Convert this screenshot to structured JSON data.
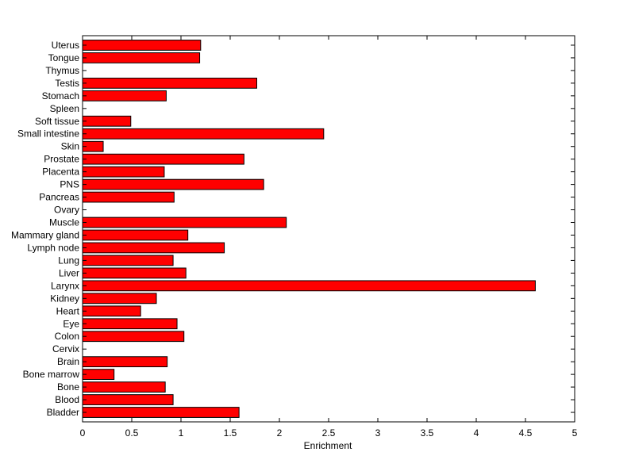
{
  "chart_data": {
    "type": "bar",
    "orientation": "horizontal",
    "title": "",
    "xlabel": "Enrichment",
    "ylabel": "",
    "xlim": [
      0,
      5
    ],
    "xticks": [
      "0",
      "0.5",
      "1",
      "1.5",
      "2",
      "2.5",
      "3",
      "3.5",
      "4",
      "4.5",
      "5"
    ],
    "grid": false,
    "bar_color": "#ff0000",
    "categories": [
      "Uterus",
      "Tongue",
      "Thymus",
      "Testis",
      "Stomach",
      "Spleen",
      "Soft tissue",
      "Small intestine",
      "Skin",
      "Prostate",
      "Placenta",
      "PNS",
      "Pancreas",
      "Ovary",
      "Muscle",
      "Mammary gland",
      "Lymph node",
      "Lung",
      "Liver",
      "Larynx",
      "Kidney",
      "Heart",
      "Eye",
      "Colon",
      "Cervix",
      "Brain",
      "Bone marrow",
      "Bone",
      "Blood",
      "Bladder"
    ],
    "values": [
      1.2,
      1.19,
      0,
      1.77,
      0.85,
      0,
      0.49,
      2.45,
      0.21,
      1.64,
      0.83,
      1.84,
      0.93,
      0,
      2.07,
      1.07,
      1.44,
      0.92,
      1.05,
      4.6,
      0.75,
      0.59,
      0.96,
      1.03,
      0,
      0.86,
      0.32,
      0.84,
      0.92,
      1.59
    ]
  }
}
